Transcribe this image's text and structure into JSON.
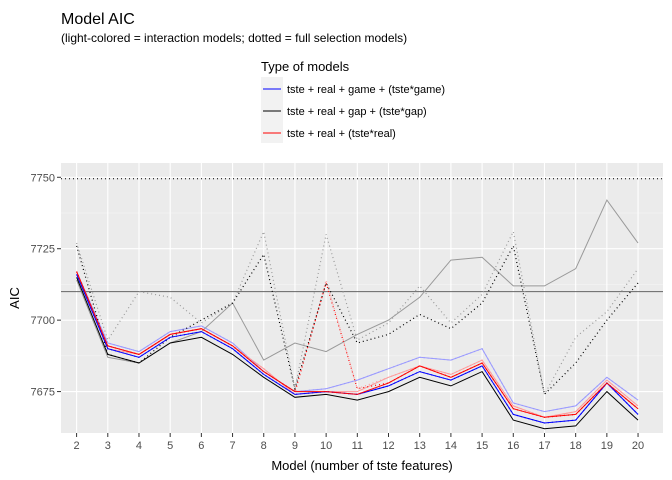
{
  "chart_data": {
    "type": "line",
    "title": "Model AIC",
    "subtitle": "(light-colored = interaction models;  dotted = full selection models)",
    "xlabel": "Model (number of tste features)",
    "ylabel": "AIC",
    "legend_title": "Type of models",
    "legend_position": "top-center",
    "grid": true,
    "panel_background": "#ebebeb",
    "x": [
      2,
      3,
      4,
      5,
      6,
      7,
      8,
      9,
      10,
      11,
      12,
      13,
      14,
      15,
      16,
      17,
      18,
      19,
      20
    ],
    "x_ticks": [
      "2",
      "3",
      "4",
      "5",
      "6",
      "7",
      "8",
      "9",
      "10",
      "11",
      "12",
      "13",
      "14",
      "15",
      "16",
      "17",
      "18",
      "19",
      "20"
    ],
    "y_ticks": [
      7675,
      7700,
      7725,
      7750
    ],
    "y_tick_labels": [
      "7675",
      "7700",
      "7725",
      "7750"
    ],
    "xlim": [
      1.5,
      20.8
    ],
    "ylim": [
      7660.5,
      7755
    ],
    "hlines": [
      {
        "y": 7749.5,
        "color": "#000000",
        "style": "dotted"
      },
      {
        "y": 7710,
        "color": "#666666",
        "style": "solid"
      }
    ],
    "legend": [
      {
        "label": "tste + real + game + (tste*game)",
        "color": "#0000ff"
      },
      {
        "label": "tste + real + gap + (tste*gap)",
        "color": "#000000"
      },
      {
        "label": "tste + real + (tste*real)",
        "color": "#ff0000"
      }
    ],
    "series": [
      {
        "group": "game",
        "variant": "base",
        "color": "#0000ff",
        "style": "solid",
        "values": [
          7716,
          7690,
          7687,
          7694,
          7696,
          7690,
          7681,
          7674,
          7675,
          7674,
          7677,
          7682,
          7679,
          7684,
          7667,
          7664,
          7665,
          7678,
          7667
        ]
      },
      {
        "group": "gap",
        "variant": "base",
        "color": "#000000",
        "style": "solid",
        "values": [
          7715,
          7688,
          7685,
          7692,
          7694,
          7688,
          7680,
          7673,
          7674,
          7672,
          7675,
          7680,
          7677,
          7682,
          7665,
          7662,
          7663,
          7675,
          7665
        ]
      },
      {
        "group": "real",
        "variant": "base",
        "color": "#ff0000",
        "style": "solid",
        "values": [
          7717,
          7691,
          7688,
          7695,
          7697,
          7691,
          7682,
          7675,
          7675,
          7674,
          7678,
          7684,
          7680,
          7685,
          7669,
          7666,
          7667,
          7678,
          7669
        ]
      },
      {
        "group": "game",
        "variant": "interaction",
        "color": "#9999ff",
        "style": "solid",
        "values": [
          7717,
          7692,
          7689,
          7696,
          7698,
          7692,
          7682,
          7675,
          7676,
          7679,
          7683,
          7687,
          7686,
          7690,
          7671,
          7668,
          7670,
          7680,
          7672
        ]
      },
      {
        "group": "gap",
        "variant": "interaction",
        "color": "#999999",
        "style": "solid",
        "values": [
          7714,
          7687,
          7685,
          7692,
          7696,
          7706,
          7686,
          7692,
          7689,
          7695,
          7700,
          7708,
          7721,
          7722,
          7712,
          7712,
          7718,
          7742,
          7727
        ]
      },
      {
        "group": "real",
        "variant": "interaction",
        "color": "#ff9999",
        "style": "solid",
        "values": [
          7717,
          7690,
          7688,
          7695,
          7697,
          7691,
          7683,
          7674,
          7675,
          7675,
          7680,
          7684,
          7681,
          7686,
          7670,
          7666,
          7668,
          7679,
          7670
        ]
      },
      {
        "group": "game",
        "variant": "full selection",
        "color": "#0000ff",
        "style": "dotted",
        "values": [
          7716,
          7690,
          7687,
          7694,
          7696,
          7690,
          7681,
          7674,
          7675,
          7674,
          7677,
          7682,
          7679,
          7684,
          7667,
          7664,
          7665,
          7678,
          7667
        ]
      },
      {
        "group": "gap",
        "variant": "full selection",
        "color": "#000000",
        "style": "dotted",
        "values": [
          7726,
          7688,
          7685,
          7694,
          7700,
          7706,
          7723,
          7676,
          7713,
          7692,
          7695,
          7702,
          7697,
          7706,
          7726,
          7674,
          7685,
          7700,
          7713
        ]
      },
      {
        "group": "real",
        "variant": "full selection",
        "color": "#ff0000",
        "style": "dotted",
        "values": [
          7717,
          7691,
          7688,
          7695,
          7697,
          7691,
          7682,
          7675,
          7713,
          7676,
          7678,
          7684,
          7680,
          7685,
          7669,
          7666,
          7667,
          7678,
          7669
        ]
      },
      {
        "group": "game",
        "variant": "interaction full selection",
        "color": "#9999ff",
        "style": "dotted",
        "values": [
          7717,
          7692,
          7689,
          7696,
          7698,
          7692,
          7682,
          7675,
          7676,
          7679,
          7683,
          7687,
          7686,
          7690,
          7671,
          7668,
          7670,
          7680,
          7672
        ]
      },
      {
        "group": "gap",
        "variant": "interaction full selection",
        "color": "#999999",
        "style": "dotted",
        "values": [
          7727,
          7693,
          7710,
          7708,
          7699,
          7706,
          7731,
          7676,
          7730,
          7693,
          7699,
          7712,
          7699,
          7709,
          7731,
          7674,
          7694,
          7703,
          7718
        ]
      },
      {
        "group": "real",
        "variant": "interaction full selection",
        "color": "#ff9999",
        "style": "dotted",
        "values": [
          7717,
          7691,
          7688,
          7695,
          7697,
          7691,
          7683,
          7674,
          7714,
          7676,
          7680,
          7684,
          7681,
          7686,
          7670,
          7666,
          7668,
          7679,
          7670
        ]
      }
    ]
  }
}
